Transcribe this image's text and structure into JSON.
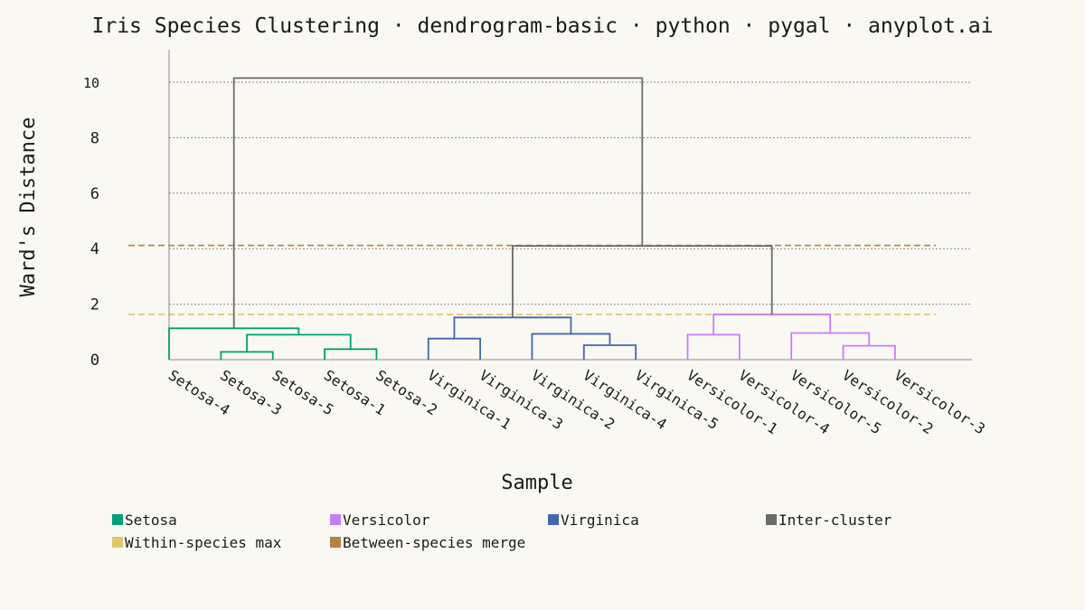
{
  "chart_data": {
    "type": "dendrogram",
    "title": "Iris Species Clustering · dendrogram-basic · python · pygal · anyplot.ai",
    "xlabel": "Sample",
    "ylabel": "Ward's Distance",
    "ylim": [
      0,
      11
    ],
    "yticks": [
      0,
      2,
      4,
      6,
      8,
      10
    ],
    "grid": true,
    "legend_position": "bottom",
    "leaves": [
      "Setosa-4",
      "Setosa-3",
      "Setosa-5",
      "Setosa-1",
      "Setosa-2",
      "Virginica-1",
      "Virginica-3",
      "Virginica-2",
      "Virginica-4",
      "Virginica-5",
      "Versicolor-1",
      "Versicolor-4",
      "Versicolor-5",
      "Versicolor-2",
      "Versicolor-3"
    ],
    "merges": [
      {
        "left": "Setosa-3",
        "right": "Setosa-5",
        "height": 0.28,
        "group": "Setosa"
      },
      {
        "left": "Setosa-1",
        "right": "Setosa-2",
        "height": 0.38,
        "group": "Setosa"
      },
      {
        "left": "{Setosa-3,Setosa-5}",
        "right": "{Setosa-1,Setosa-2}",
        "height": 0.9,
        "group": "Setosa"
      },
      {
        "left": "Setosa-4",
        "right": "{Setosa-3,Setosa-5,Setosa-1,Setosa-2}",
        "height": 1.13,
        "group": "Setosa"
      },
      {
        "left": "Virginica-1",
        "right": "Virginica-3",
        "height": 0.76,
        "group": "Virginica"
      },
      {
        "left": "Virginica-4",
        "right": "Virginica-5",
        "height": 0.52,
        "group": "Virginica"
      },
      {
        "left": "Virginica-2",
        "right": "{Virginica-4,Virginica-5}",
        "height": 0.93,
        "group": "Virginica"
      },
      {
        "left": "{Virginica-1,Virginica-3}",
        "right": "{Virginica-2,Virginica-4,Virginica-5}",
        "height": 1.52,
        "group": "Virginica"
      },
      {
        "left": "Versicolor-1",
        "right": "Versicolor-4",
        "height": 0.9,
        "group": "Versicolor"
      },
      {
        "left": "Versicolor-2",
        "right": "Versicolor-3",
        "height": 0.5,
        "group": "Versicolor"
      },
      {
        "left": "Versicolor-5",
        "right": "{Versicolor-2,Versicolor-3}",
        "height": 0.96,
        "group": "Versicolor"
      },
      {
        "left": "{Versicolor-1,Versicolor-4}",
        "right": "{Versicolor-5,Versicolor-2,Versicolor-3}",
        "height": 1.63,
        "group": "Versicolor"
      },
      {
        "left": "Virginica",
        "right": "Versicolor",
        "height": 4.1,
        "group": "Inter-cluster"
      },
      {
        "left": "Setosa",
        "right": "{Virginica,Versicolor}",
        "height": 10.15,
        "group": "Inter-cluster"
      }
    ],
    "thresholds": [
      {
        "name": "Within-species max",
        "value": 1.63
      },
      {
        "name": "Between-species merge",
        "value": 4.12
      }
    ],
    "legend": [
      {
        "label": "Setosa",
        "color": "#009E73"
      },
      {
        "label": "Versicolor",
        "color": "#C77CFF"
      },
      {
        "label": "Virginica",
        "color": "#4467AA"
      },
      {
        "label": "Inter-cluster",
        "color": "#6B6B6B"
      },
      {
        "label": "Within-species max",
        "color": "#E0C66A"
      },
      {
        "label": "Between-species merge",
        "color": "#B8823A"
      }
    ]
  }
}
